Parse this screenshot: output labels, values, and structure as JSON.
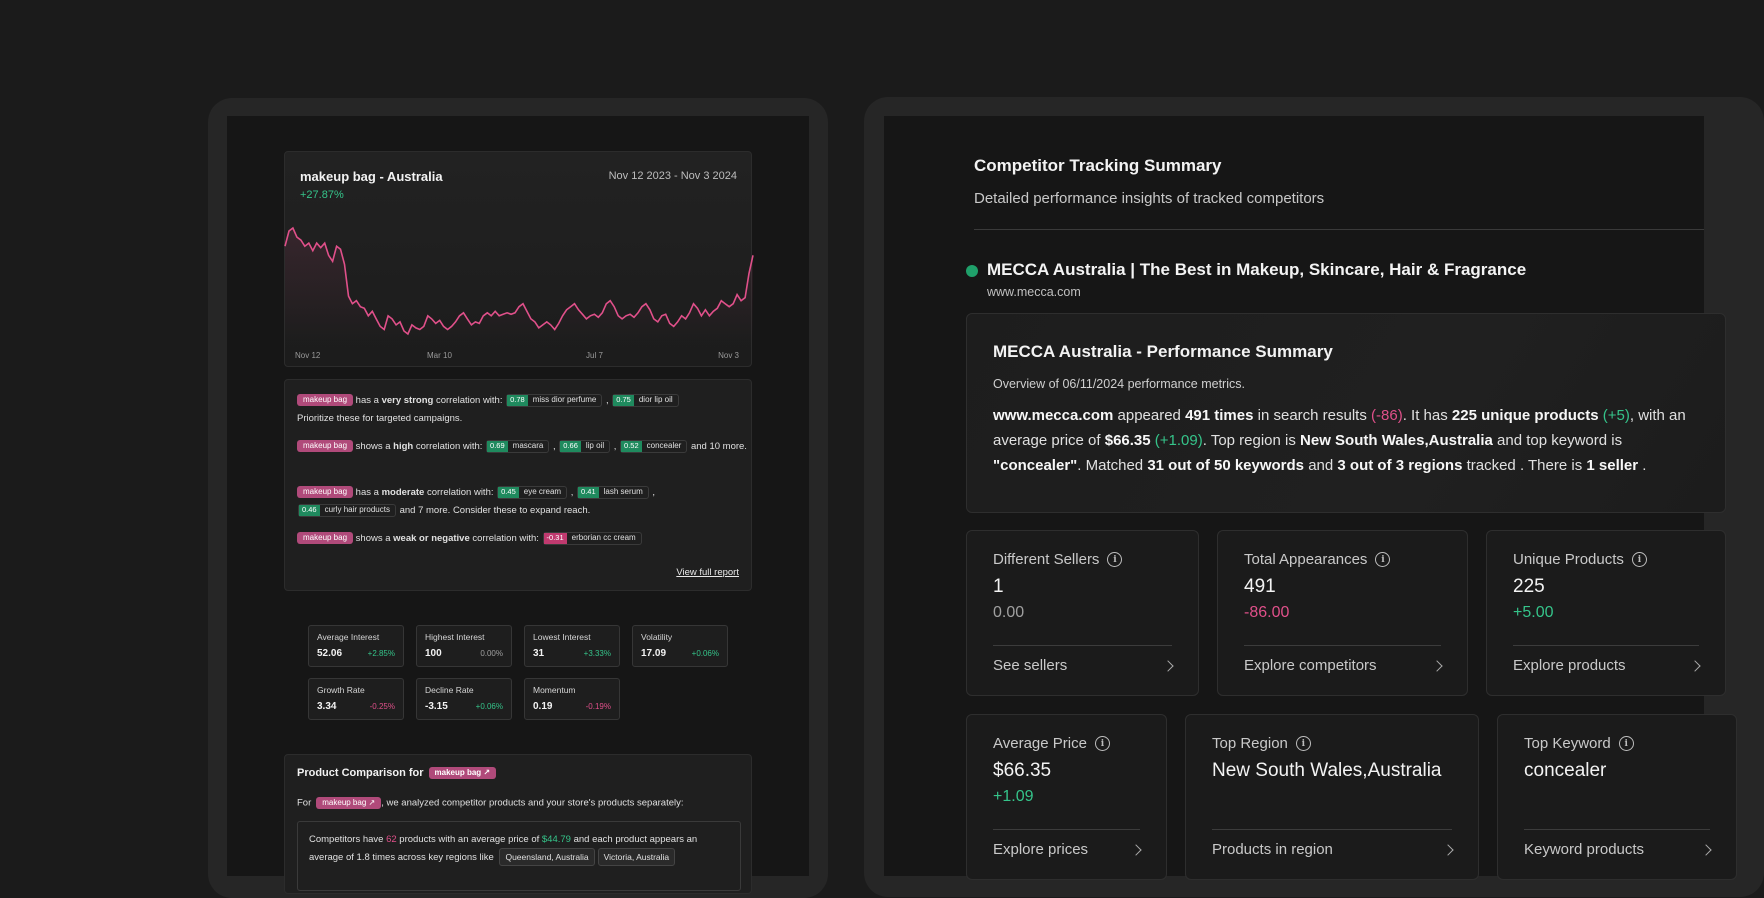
{
  "trend_card": {
    "title": "makeup bag - Australia",
    "change": "+27.87%",
    "date_range": "Nov 12 2023 - Nov 3 2024",
    "x_ticks": [
      "Nov 12",
      "Mar 10",
      "Jul 7",
      "Nov 3"
    ],
    "line_color": "#e0508a"
  },
  "chart_data": {
    "type": "line",
    "title": "makeup bag - Australia",
    "x_ticks": [
      "Nov 12",
      "Mar 10",
      "Jul 7",
      "Nov 3"
    ],
    "series": [
      {
        "values": [
          58,
          68,
          70,
          64,
          62,
          58,
          60,
          55,
          60,
          57,
          60,
          52,
          48,
          58,
          56,
          46,
          25,
          20,
          22,
          18,
          17,
          12,
          15,
          10,
          5,
          3,
          12,
          10,
          6,
          8,
          2,
          0,
          6,
          4,
          3,
          5,
          12,
          10,
          7,
          9,
          5,
          3,
          5,
          8,
          12,
          14,
          10,
          6,
          8,
          7,
          12,
          14,
          12,
          15,
          12,
          13,
          14,
          13,
          14,
          18,
          20,
          15,
          10,
          8,
          4,
          6,
          8,
          6,
          3,
          7,
          12,
          16,
          18,
          20,
          16,
          13,
          10,
          12,
          13,
          11,
          14,
          20,
          22,
          18,
          12,
          10,
          12,
          13,
          11,
          14,
          18,
          20,
          16,
          10,
          8,
          12,
          13,
          7,
          5,
          8,
          12,
          10,
          14,
          20,
          17,
          12,
          16,
          12,
          15,
          17,
          22,
          20,
          18,
          20,
          26,
          22,
          24,
          40,
          52
        ]
      }
    ]
  },
  "correlation": {
    "keyword": "makeup bag",
    "p1": {
      "pre": "has a ",
      "strength": "very strong",
      "post": " correlation with:",
      "items": [
        {
          "score": "0.78",
          "name": "miss dior perfume"
        },
        {
          "score": "0.75",
          "name": "dior lip oil"
        }
      ],
      "tail": "Prioritize these for targeted campaigns."
    },
    "p2": {
      "pre": "shows a ",
      "strength": "high",
      "post": " correlation with:",
      "items": [
        {
          "score": "0.69",
          "name": "mascara"
        },
        {
          "score": "0.66",
          "name": "lip oil"
        },
        {
          "score": "0.52",
          "name": "concealer"
        }
      ],
      "tail": "and 10 more."
    },
    "p3": {
      "pre": "has a ",
      "strength": "moderate",
      "post": " correlation with:",
      "items": [
        {
          "score": "0.45",
          "name": "eye cream"
        },
        {
          "score": "0.41",
          "name": "lash serum"
        },
        {
          "score": "0.46",
          "name": "curly hair products"
        }
      ],
      "tail": "and 7 more. Consider these to expand reach."
    },
    "p4": {
      "pre": "shows a ",
      "strength": "weak or negative",
      "post": " correlation with:",
      "items": [
        {
          "score": "-0.31",
          "name": "erborian cc cream"
        }
      ]
    },
    "view_report": "View full report"
  },
  "stats": [
    {
      "label": "Average Interest",
      "value": "52.06",
      "change": "+2.85%",
      "tone": "pos"
    },
    {
      "label": "Highest Interest",
      "value": "100",
      "change": "0.00%",
      "tone": "neu"
    },
    {
      "label": "Lowest Interest",
      "value": "31",
      "change": "+3.33%",
      "tone": "pos"
    },
    {
      "label": "Volatility",
      "value": "17.09",
      "change": "+0.06%",
      "tone": "pos"
    },
    {
      "label": "Growth Rate",
      "value": "3.34",
      "change": "-0.25%",
      "tone": "neg"
    },
    {
      "label": "Decline Rate",
      "value": "-3.15",
      "change": "+0.06%",
      "tone": "pos"
    },
    {
      "label": "Momentum",
      "value": "0.19",
      "change": "-0.19%",
      "tone": "neg"
    }
  ],
  "product_comparison": {
    "title": "Product Comparison for",
    "keyword": "makeup bag",
    "sub_pre": "For",
    "sub_post": ", we analyzed competitor products and your store's products separately:",
    "text_a": "Competitors have ",
    "count": "62",
    "text_b": " products with an average price of ",
    "price": "$44.79",
    "text_c": " and each product appears an average of 1.8 times across key regions like",
    "regions": [
      "Queensland, Australia",
      "Victoria, Australia"
    ]
  },
  "summary": {
    "title": "Competitor Tracking Summary",
    "subtitle": "Detailed performance insights of tracked competitors",
    "competitor_name": "MECCA Australia | The Best in Makeup, Skincare, Hair & Fragrance",
    "competitor_url": "www.mecca.com",
    "status_color": "#1fa06a"
  },
  "performance": {
    "title": "MECCA Australia - Performance Summary",
    "subtitle": "Overview of 06/11/2024 performance metrics.",
    "domain": "www.mecca.com",
    "t1": " appeared ",
    "appear": "491 times",
    "t2": " in search results ",
    "appear_delta": "(-86)",
    "t3": ". It has ",
    "unique": "225 unique products",
    "unique_delta": "(+5)",
    "t4": ", with an average price of ",
    "avg_price": "$66.35",
    "price_delta": "(+1.09)",
    "t5": ". Top region is ",
    "region": "New South Wales,Australia",
    "t6": " and top keyword is ",
    "keyword": "\"concealer\"",
    "t7": ". Matched ",
    "matched_kw": "31 out of 50 keywords",
    "t8": " and ",
    "matched_rg": "3 out of 3 regions",
    "t9": " tracked . There is ",
    "sellers": "1 seller",
    "t10": " ."
  },
  "metrics": [
    {
      "label": "Different Sellers",
      "value": "1",
      "delta": "0.00",
      "tone": "neu",
      "link": "See sellers"
    },
    {
      "label": "Total Appearances",
      "value": "491",
      "delta": "-86.00",
      "tone": "neg",
      "link": "Explore competitors"
    },
    {
      "label": "Unique Products",
      "value": "225",
      "delta": "+5.00",
      "tone": "pos",
      "link": "Explore products"
    },
    {
      "label": "Average Price",
      "value": "$66.35",
      "delta": "+1.09",
      "tone": "pos",
      "link": "Explore prices"
    },
    {
      "label": "Top Region",
      "value": "New South Wales,Australia",
      "delta": "",
      "tone": "neu",
      "link": "Products in region"
    },
    {
      "label": "Top Keyword",
      "value": "concealer",
      "delta": "",
      "tone": "neu",
      "link": "Keyword products"
    }
  ]
}
